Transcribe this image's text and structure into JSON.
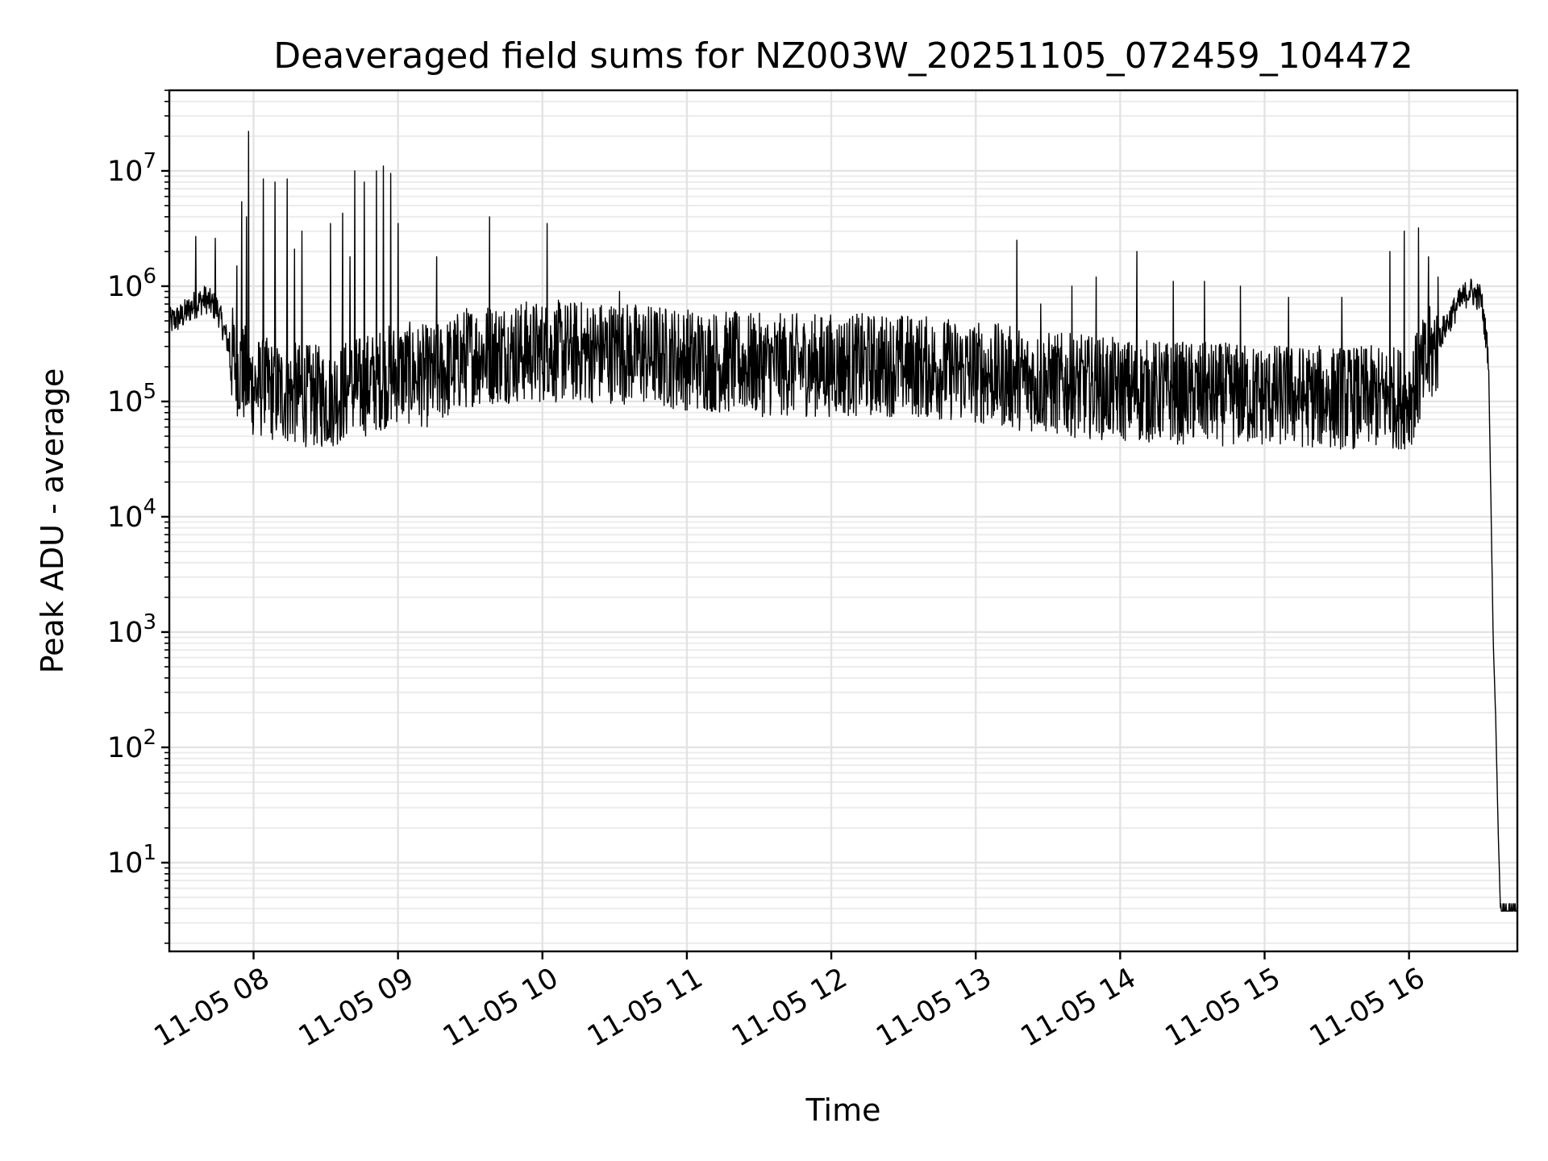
{
  "chart_data": {
    "type": "line",
    "title": "Deaveraged field sums for NZ003W_20251105_072459_104472",
    "xlabel": "Time",
    "ylabel": "Peak ADU - average",
    "yscale": "log",
    "ylim": [
      1.7,
      50000000
    ],
    "xlim": [
      "2025-11-05 07:25",
      "2025-11-05 16:45"
    ],
    "x_tick_labels": [
      "11-05 08",
      "11-05 09",
      "11-05 10",
      "11-05 11",
      "11-05 12",
      "11-05 13",
      "11-05 14",
      "11-05 15",
      "11-05 16"
    ],
    "x_tick_times": [
      "2025-11-05 08:00",
      "2025-11-05 09:00",
      "2025-11-05 10:00",
      "2025-11-05 11:00",
      "2025-11-05 12:00",
      "2025-11-05 13:00",
      "2025-11-05 14:00",
      "2025-11-05 15:00",
      "2025-11-05 16:00"
    ],
    "y_tick_labels": [
      {
        "base": "10",
        "exp": "1"
      },
      {
        "base": "10",
        "exp": "2"
      },
      {
        "base": "10",
        "exp": "3"
      },
      {
        "base": "10",
        "exp": "4"
      },
      {
        "base": "10",
        "exp": "5"
      },
      {
        "base": "10",
        "exp": "6"
      },
      {
        "base": "10",
        "exp": "7"
      }
    ],
    "grid": true,
    "series_color": "#000000",
    "series": [
      {
        "points": [
          [
            "2025-11-05 07:25",
            500000
          ],
          [
            "2025-11-05 07:30",
            560000
          ],
          [
            "2025-11-05 07:35",
            700000
          ],
          [
            "2025-11-05 07:40",
            800000
          ],
          [
            "2025-11-05 07:45",
            650000
          ],
          [
            "2025-11-05 07:50",
            300000
          ],
          [
            "2025-11-05 07:55",
            200000
          ],
          [
            "2025-11-05 08:00",
            150000
          ],
          [
            "2025-11-05 08:15",
            130000
          ],
          [
            "2025-11-05 08:30",
            120000
          ],
          [
            "2025-11-05 08:45",
            150000
          ],
          [
            "2025-11-05 09:00",
            200000
          ],
          [
            "2025-11-05 09:15",
            180000
          ],
          [
            "2025-11-05 09:30",
            280000
          ],
          [
            "2025-11-05 09:45",
            300000
          ],
          [
            "2025-11-05 10:00",
            300000
          ],
          [
            "2025-11-05 10:30",
            300000
          ],
          [
            "2025-11-05 11:00",
            260000
          ],
          [
            "2025-11-05 11:30",
            230000
          ],
          [
            "2025-11-05 12:00",
            230000
          ],
          [
            "2025-11-05 12:30",
            230000
          ],
          [
            "2025-11-05 13:00",
            200000
          ],
          [
            "2025-11-05 13:30",
            160000
          ],
          [
            "2025-11-05 14:00",
            140000
          ],
          [
            "2025-11-05 14:30",
            130000
          ],
          [
            "2025-11-05 15:00",
            125000
          ],
          [
            "2025-11-05 15:30",
            120000
          ],
          [
            "2025-11-05 16:00",
            120000
          ],
          [
            "2025-11-05 16:10",
            300000
          ],
          [
            "2025-11-05 16:20",
            700000
          ],
          [
            "2025-11-05 16:25",
            950000
          ],
          [
            "2025-11-05 16:30",
            800000
          ],
          [
            "2025-11-05 16:33",
            250000
          ],
          [
            "2025-11-05 16:35",
            800
          ],
          [
            "2025-11-05 16:36",
            180
          ],
          [
            "2025-11-05 16:37",
            20
          ],
          [
            "2025-11-05 16:38",
            3.8
          ],
          [
            "2025-11-05 16:45",
            3.8
          ]
        ],
        "spikes": [
          [
            "2025-11-05 07:36",
            2700000
          ],
          [
            "2025-11-05 07:44",
            2600000
          ],
          [
            "2025-11-05 07:53",
            1500000
          ],
          [
            "2025-11-05 07:55",
            5400000
          ],
          [
            "2025-11-05 07:57",
            4000000
          ],
          [
            "2025-11-05 07:58",
            22000000
          ],
          [
            "2025-11-05 08:04",
            8500000
          ],
          [
            "2025-11-05 08:09",
            8000000
          ],
          [
            "2025-11-05 08:14",
            8500000
          ],
          [
            "2025-11-05 08:17",
            2100000
          ],
          [
            "2025-11-05 08:20",
            3000000
          ],
          [
            "2025-11-05 08:32",
            3500000
          ],
          [
            "2025-11-05 08:37",
            4300000
          ],
          [
            "2025-11-05 08:40",
            1800000
          ],
          [
            "2025-11-05 08:42",
            10000000
          ],
          [
            "2025-11-05 08:46",
            8000000
          ],
          [
            "2025-11-05 08:51",
            10000000
          ],
          [
            "2025-11-05 08:54",
            11000000
          ],
          [
            "2025-11-05 08:57",
            9500000
          ],
          [
            "2025-11-05 09:00",
            3500000
          ],
          [
            "2025-11-05 09:16",
            1800000
          ],
          [
            "2025-11-05 09:38",
            4000000
          ],
          [
            "2025-11-05 10:02",
            3500000
          ],
          [
            "2025-11-05 10:32",
            900000
          ],
          [
            "2025-11-05 13:17",
            2500000
          ],
          [
            "2025-11-05 13:27",
            700000
          ],
          [
            "2025-11-05 13:40",
            1000000
          ],
          [
            "2025-11-05 13:50",
            1200000
          ],
          [
            "2025-11-05 14:07",
            2000000
          ],
          [
            "2025-11-05 14:22",
            1100000
          ],
          [
            "2025-11-05 14:35",
            1100000
          ],
          [
            "2025-11-05 14:50",
            1000000
          ],
          [
            "2025-11-05 15:10",
            800000
          ],
          [
            "2025-11-05 15:32",
            800000
          ],
          [
            "2025-11-05 15:52",
            2000000
          ],
          [
            "2025-11-05 15:58",
            3000000
          ],
          [
            "2025-11-05 16:04",
            3200000
          ],
          [
            "2025-11-05 16:08",
            1800000
          ],
          [
            "2025-11-05 16:12",
            1200000
          ]
        ]
      }
    ]
  }
}
